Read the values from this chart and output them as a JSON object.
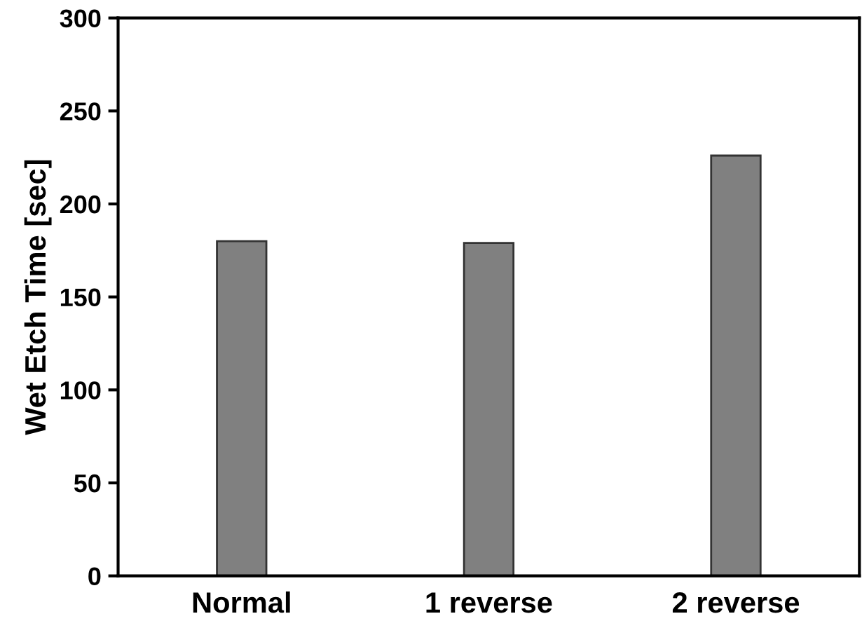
{
  "chart_data": {
    "type": "bar",
    "ylabel": "Wet Etch Time [sec]",
    "categories": [
      "Normal",
      "1 reverse",
      "2 reverse"
    ],
    "values": [
      180,
      179,
      226
    ],
    "color": "#808080",
    "ylim": [
      0,
      300
    ],
    "yticks": [
      0,
      50,
      100,
      150,
      200,
      250,
      300
    ],
    "grid": false
  }
}
